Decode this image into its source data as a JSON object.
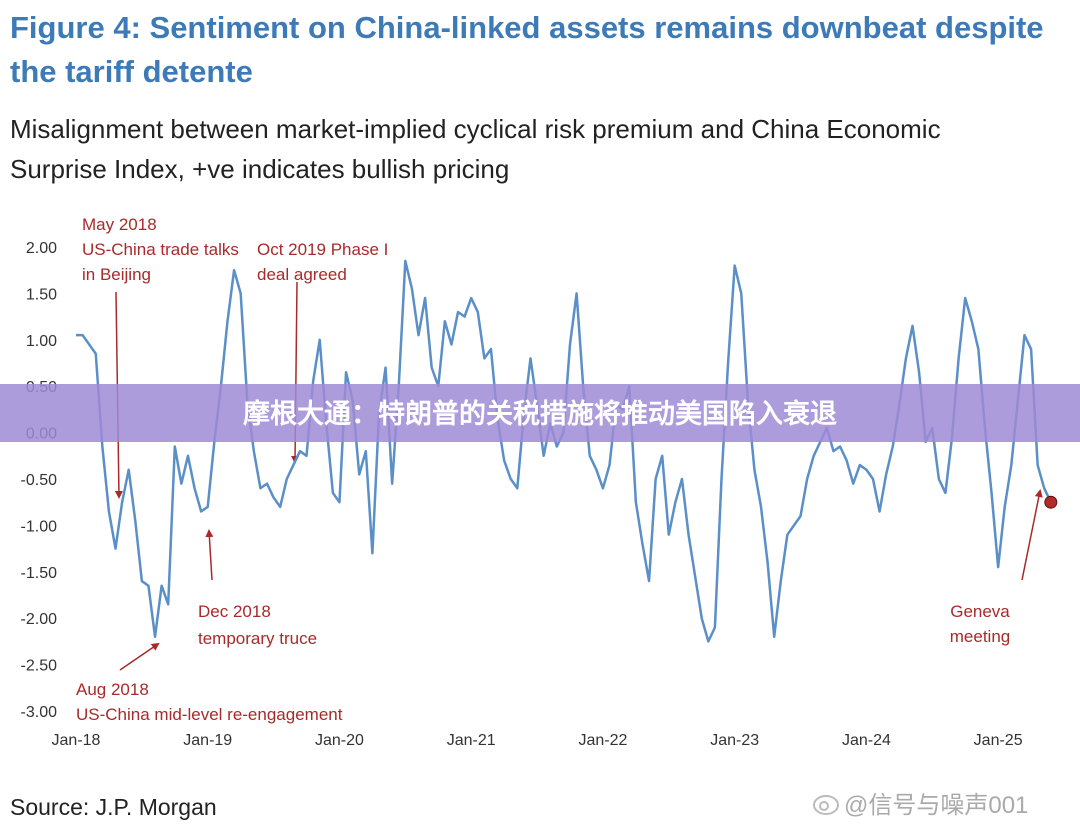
{
  "chart_data": {
    "type": "line",
    "title": [
      "Figure 4: Sentiment on China-linked assets remains downbeat despite",
      "the tariff detente"
    ],
    "subtitle": [
      "Misalignment between market-implied cyclical risk premium and China Economic",
      "Surprise Index, +ve indicates bullish pricing"
    ],
    "source": "Source: J.P. Morgan",
    "xlim": [
      2018,
      2025.5
    ],
    "xticks": [
      {
        "value": 2018,
        "label": "Jan-18"
      },
      {
        "value": 2019,
        "label": "Jan-19"
      },
      {
        "value": 2020,
        "label": "Jan-20"
      },
      {
        "value": 2021,
        "label": "Jan-21"
      },
      {
        "value": 2022,
        "label": "Jan-22"
      },
      {
        "value": 2023,
        "label": "Jan-23"
      },
      {
        "value": 2024,
        "label": "Jan-24"
      },
      {
        "value": 2025,
        "label": "Jan-25"
      }
    ],
    "ylim": [
      -3,
      2
    ],
    "yticks": [
      {
        "value": 2,
        "label": "2.00"
      },
      {
        "value": 1.5,
        "label": "1.50"
      },
      {
        "value": 1,
        "label": "1.00"
      },
      {
        "value": 0.5,
        "label": "0.50"
      },
      {
        "value": 0,
        "label": "0.00"
      },
      {
        "value": -0.5,
        "label": "-0.50"
      },
      {
        "value": -1,
        "label": "-1.00"
      },
      {
        "value": -1.5,
        "label": "-1.50"
      },
      {
        "value": -2,
        "label": "-2.00"
      },
      {
        "value": -2.5,
        "label": "-2.50"
      },
      {
        "value": -3,
        "label": "-3.00"
      }
    ],
    "grid": false,
    "x": [
      2018,
      2018.05,
      2018.1,
      2018.15,
      2018.2,
      2018.25,
      2018.3,
      2018.35,
      2018.4,
      2018.45,
      2018.5,
      2018.55,
      2018.6,
      2018.65,
      2018.7,
      2018.75,
      2018.8,
      2018.85,
      2018.9,
      2018.95,
      2019,
      2019.05,
      2019.1,
      2019.15,
      2019.2,
      2019.25,
      2019.3,
      2019.35,
      2019.4,
      2019.45,
      2019.5,
      2019.55,
      2019.6,
      2019.65,
      2019.7,
      2019.75,
      2019.8,
      2019.85,
      2019.9,
      2019.95,
      2020,
      2020.05,
      2020.1,
      2020.15,
      2020.2,
      2020.25,
      2020.3,
      2020.35,
      2020.4,
      2020.45,
      2020.5,
      2020.55,
      2020.6,
      2020.65,
      2020.7,
      2020.75,
      2020.8,
      2020.85,
      2020.9,
      2020.95,
      2021,
      2021.05,
      2021.1,
      2021.15,
      2021.2,
      2021.25,
      2021.3,
      2021.35,
      2021.4,
      2021.45,
      2021.5,
      2021.55,
      2021.6,
      2021.65,
      2021.7,
      2021.75,
      2021.8,
      2021.85,
      2021.9,
      2021.95,
      2022,
      2022.05,
      2022.1,
      2022.15,
      2022.2,
      2022.25,
      2022.3,
      2022.35,
      2022.4,
      2022.45,
      2022.5,
      2022.55,
      2022.6,
      2022.65,
      2022.7,
      2022.75,
      2022.8,
      2022.85,
      2022.9,
      2022.95,
      2023,
      2023.05,
      2023.1,
      2023.15,
      2023.2,
      2023.25,
      2023.3,
      2023.35,
      2023.4,
      2023.45,
      2023.5,
      2023.55,
      2023.6,
      2023.65,
      2023.7,
      2023.75,
      2023.8,
      2023.85,
      2023.9,
      2023.95,
      2024,
      2024.05,
      2024.1,
      2024.15,
      2024.2,
      2024.25,
      2024.3,
      2024.35,
      2024.4,
      2024.45,
      2024.5,
      2024.55,
      2024.6,
      2024.65,
      2024.7,
      2024.75,
      2024.8,
      2024.85,
      2024.9,
      2024.95,
      2025,
      2025.05,
      2025.1,
      2025.15,
      2025.2,
      2025.25,
      2025.3,
      2025.35,
      2025.4
    ],
    "series": [
      {
        "color": "#5b8fc7",
        "values": [
          1.05,
          1.05,
          0.95,
          0.85,
          -0.15,
          -0.85,
          -1.25,
          -0.75,
          -0.4,
          -0.95,
          -1.6,
          -1.65,
          -2.2,
          -1.65,
          -1.85,
          -0.15,
          -0.55,
          -0.25,
          -0.6,
          -0.85,
          -0.8,
          -0.1,
          0.5,
          1.2,
          1.75,
          1.5,
          0.35,
          -0.2,
          -0.6,
          -0.55,
          -0.7,
          -0.8,
          -0.5,
          -0.35,
          -0.2,
          -0.25,
          0.55,
          1.0,
          0.1,
          -0.65,
          -0.75,
          0.65,
          0.35,
          -0.45,
          -0.2,
          -1.3,
          0.2,
          0.7,
          -0.55,
          0.5,
          1.85,
          1.55,
          1.05,
          1.45,
          0.7,
          0.5,
          1.2,
          0.95,
          1.3,
          1.25,
          1.45,
          1.3,
          0.8,
          0.9,
          0.15,
          -0.3,
          -0.5,
          -0.6,
          0.2,
          0.8,
          0.3,
          -0.25,
          0.1,
          -0.15,
          0.0,
          0.95,
          1.5,
          0.5,
          -0.25,
          -0.4,
          -0.6,
          -0.35,
          0.3,
          0.25,
          0.5,
          -0.75,
          -1.2,
          -1.6,
          -0.5,
          -0.25,
          -1.1,
          -0.75,
          -0.5,
          -1.1,
          -1.55,
          -2.0,
          -2.25,
          -2.1,
          -0.5,
          0.75,
          1.8,
          1.5,
          0.35,
          -0.4,
          -0.8,
          -1.4,
          -2.2,
          -1.6,
          -1.1,
          -1.0,
          -0.9,
          -0.5,
          -0.25,
          -0.1,
          0.05,
          -0.2,
          -0.15,
          -0.3,
          -0.55,
          -0.35,
          -0.4,
          -0.5,
          -0.85,
          -0.45,
          -0.15,
          0.3,
          0.8,
          1.15,
          0.65,
          -0.1,
          0.05,
          -0.5,
          -0.65,
          -0.05,
          0.8,
          1.45,
          1.2,
          0.9,
          0.05,
          -0.65,
          -1.45,
          -0.8,
          -0.35,
          0.35,
          1.05,
          0.9,
          -0.35,
          -0.6,
          -0.75
        ]
      }
    ],
    "marker_color": "#b22a2a",
    "annotations": [
      {
        "lines": [
          "May 2018",
          "US-China trade talks",
          "in Beijing"
        ]
      },
      {
        "lines": [
          "Oct 2019 Phase I",
          "deal agreed"
        ]
      },
      {
        "lines": [
          "Dec 2018",
          "temporary truce"
        ]
      },
      {
        "lines": [
          "Aug 2018",
          "US-China mid-level re-engagement"
        ]
      },
      {
        "lines": [
          "Geneva",
          "meeting"
        ]
      }
    ],
    "annotation_color": "#a82a2a"
  },
  "banner": "摩根大通：特朗普的关税措施将推动美国陷入衰退",
  "watermark": "@信号与噪声001"
}
